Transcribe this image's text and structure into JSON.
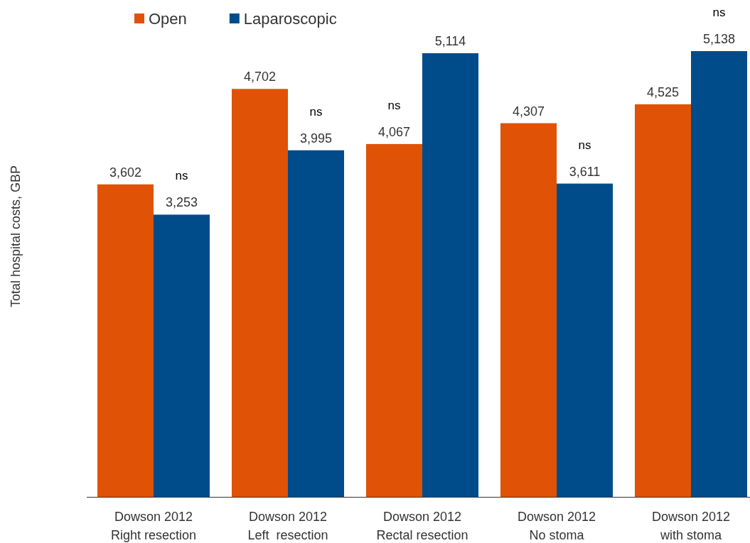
{
  "chart_data": {
    "type": "bar",
    "ylabel": "Total hospital costs, GBP",
    "categories": [
      "Dowson 2012\nRight resection",
      "Dowson 2012\nLeft  resection",
      "Dowson 2012\nRectal resection",
      "Dowson 2012\nNo stoma",
      "Dowson 2012\nwith stoma"
    ],
    "series": [
      {
        "name": "Open",
        "color": "#e05206",
        "values": [
          3602,
          4702,
          4067,
          4307,
          4525
        ],
        "value_labels": [
          "3,602",
          "4,702",
          "4,067",
          "4,307",
          "4,525"
        ]
      },
      {
        "name": "Laparoscopic",
        "color": "#004c8a",
        "values": [
          3253,
          3995,
          5114,
          3611,
          5138
        ],
        "value_labels": [
          "3,253",
          "3,995",
          "5,114",
          "3,611",
          "5,138"
        ]
      }
    ],
    "legend": "top left",
    "annotations": [
      "ns",
      "ns",
      "ns",
      "ns",
      "ns"
    ]
  }
}
